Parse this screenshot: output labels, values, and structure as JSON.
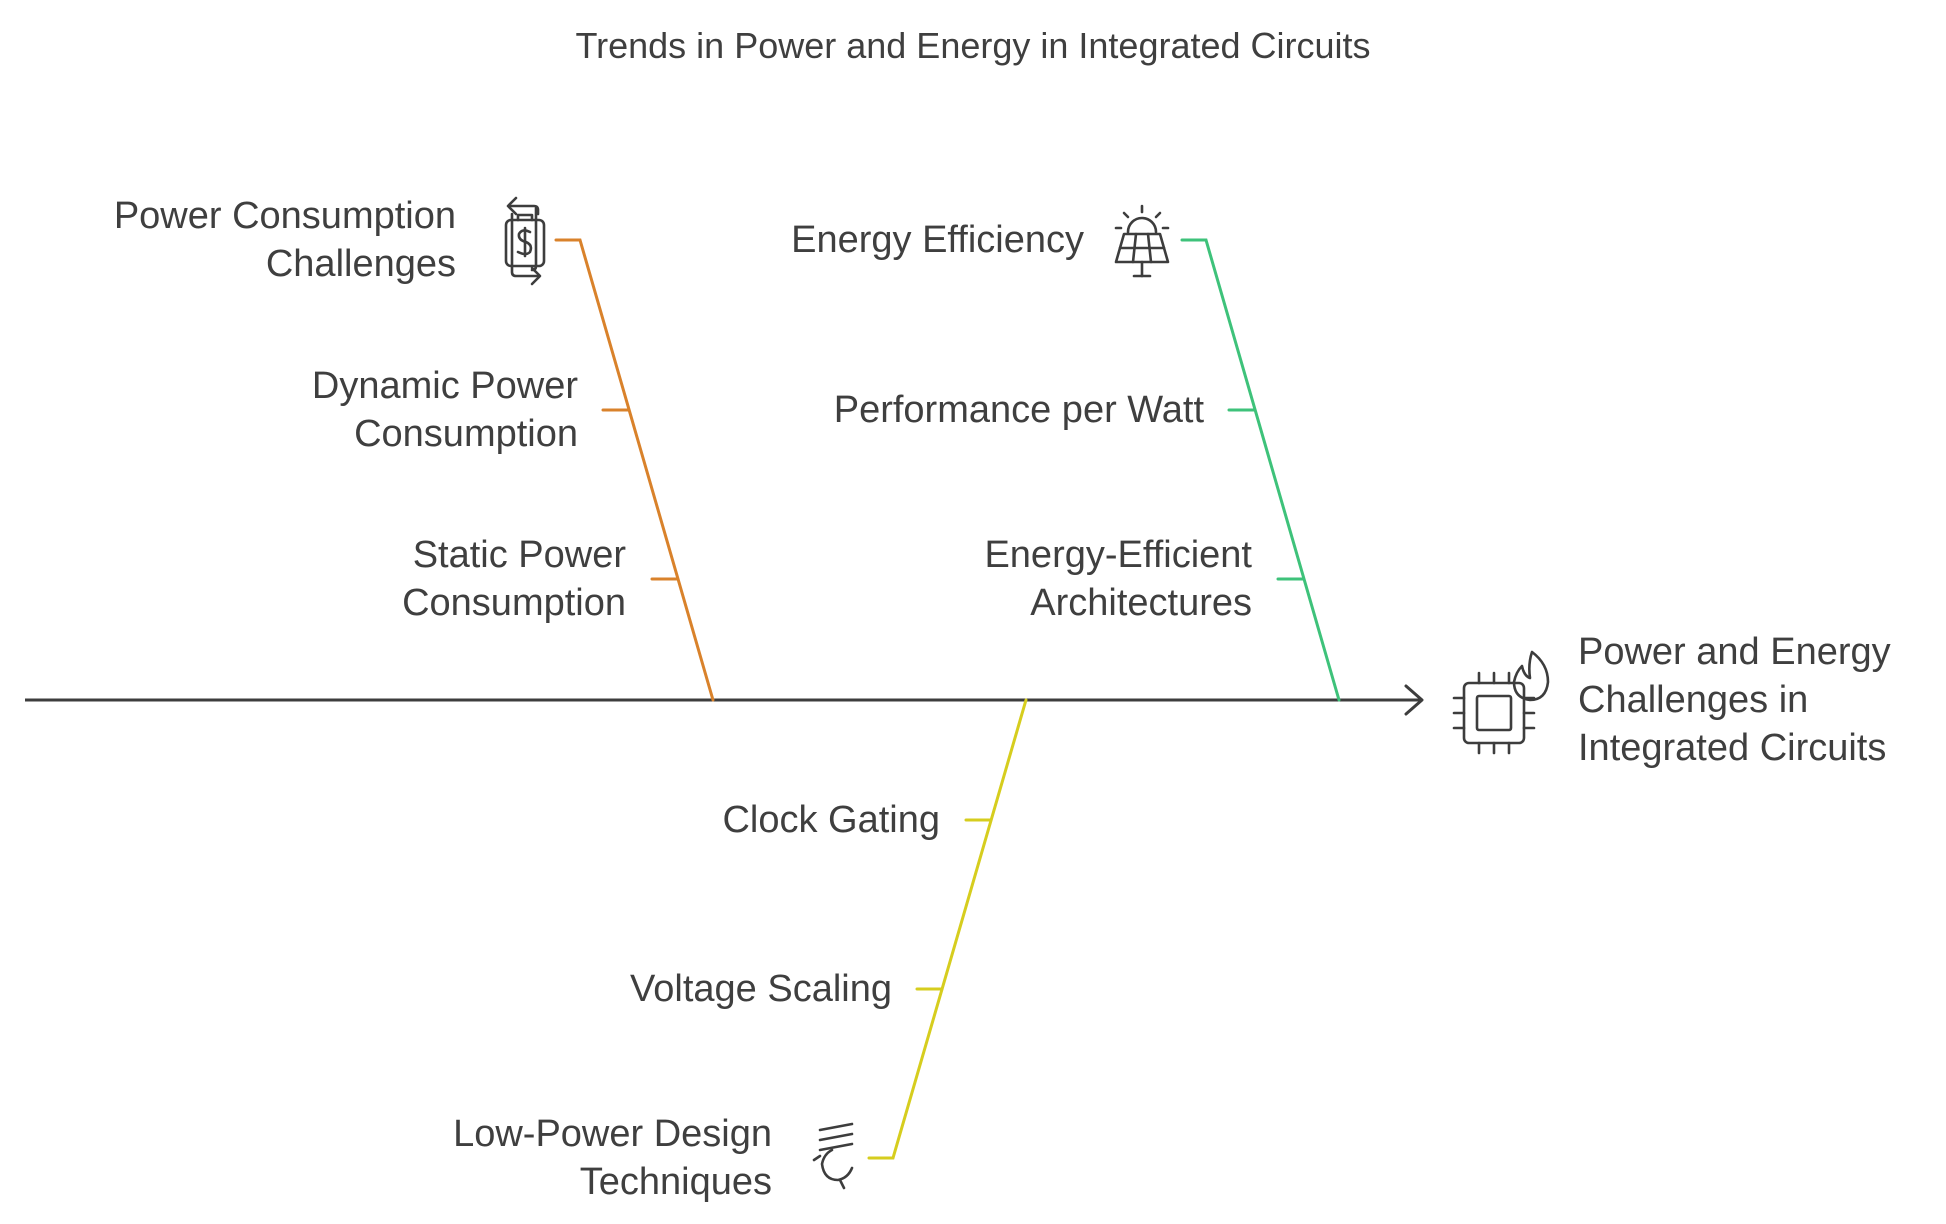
{
  "title": "Trends in Power and Energy in Integrated Circuits",
  "colors": {
    "spine": "#3d3d3d",
    "text": "#3f3f3f",
    "orange": "#d9822b",
    "green": "#3ec27a",
    "yellow": "#d6cd1e"
  },
  "head": {
    "label": "Power and Energy\nChallenges in\nIntegrated Circuits",
    "icon": "cpu-flame-icon"
  },
  "branches": [
    {
      "id": "power-consumption",
      "color": "#d9822b",
      "title": "Power Consumption\nChallenges",
      "icon": "battery-cycle-icon",
      "items": [
        "Dynamic Power\nConsumption",
        "Static Power\nConsumption"
      ]
    },
    {
      "id": "energy-efficiency",
      "color": "#3ec27a",
      "title": "Energy Efficiency",
      "icon": "solar-panel-icon",
      "items": [
        "Performance per Watt",
        "Energy-Efficient\nArchitectures"
      ]
    },
    {
      "id": "low-power-design",
      "color": "#d6cd1e",
      "title": "Low-Power Design\nTechniques",
      "icon": "light-bulb-icon",
      "items": [
        "Clock Gating",
        "Voltage Scaling"
      ]
    }
  ]
}
